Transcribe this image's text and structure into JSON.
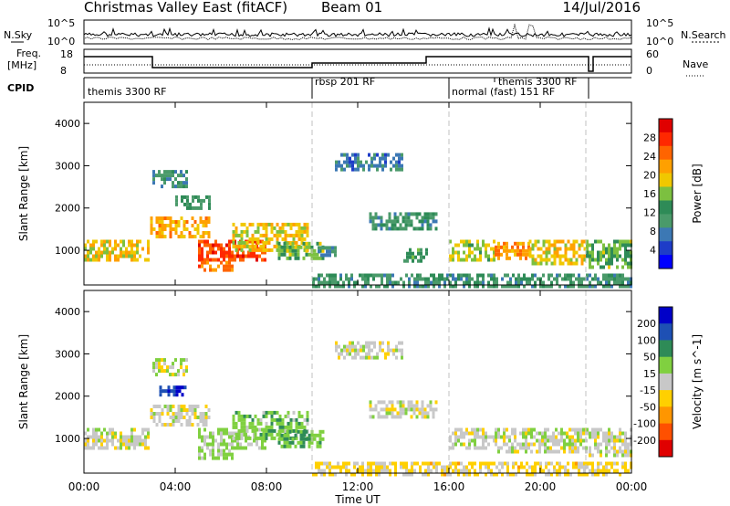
{
  "header": {
    "title": "Christmas Valley East (fitACF)",
    "beam": "Beam 01",
    "date": "14/Jul/2016"
  },
  "nsky_panel": {
    "left_label": "N.Sky",
    "right_label": "N.Search",
    "left_ticks": [
      "10^5",
      "10^0"
    ],
    "right_ticks": [
      "10^5",
      "10^0"
    ]
  },
  "freq_panel": {
    "left_label_1": "Freq.",
    "left_label_2": "[MHz]",
    "left_ticks": [
      "18",
      "8"
    ],
    "right_label": "Nave",
    "right_ticks": [
      "60",
      "0"
    ]
  },
  "cpid": {
    "label": "CPID",
    "segments": [
      {
        "name": "themis 3300 RF",
        "start_h": 0.0
      },
      {
        "name": "rbsp 201 RF",
        "start_h": 10.0
      },
      {
        "name": "normal (fast) 151 RF",
        "start_h": 16.0
      },
      {
        "name": "themis 3300 RF",
        "start_h": 18.0
      }
    ]
  },
  "chart_data": [
    {
      "type": "heatmap",
      "title": "",
      "xlabel": "Time UT",
      "ylabel": "Slant Range [km]",
      "xlim": [
        0,
        24
      ],
      "ylim": [
        180,
        4500
      ],
      "x_ticks": [
        "00:00",
        "04:00",
        "08:00",
        "12:00",
        "16:00",
        "20:00",
        "00:00"
      ],
      "y_ticks": [
        "1000",
        "2000",
        "3000",
        "4000"
      ],
      "colorbar": {
        "label": "Power [dB]",
        "ticks": [
          "4",
          "8",
          "12",
          "16",
          "20",
          "24",
          "28"
        ],
        "range": [
          0,
          30
        ],
        "colors": [
          "#0000ff",
          "#1e3cc8",
          "#3c78b4",
          "#4a9a6a",
          "#2e8b57",
          "#7cc040",
          "#f0c800",
          "#ffa000",
          "#ff6400",
          "#ff2800",
          "#e00000"
        ]
      },
      "regions": [
        {
          "t0": 0.0,
          "t1": 2.8,
          "r0": 750,
          "r1": 1250,
          "val": 18
        },
        {
          "t0": 2.9,
          "t1": 5.5,
          "r0": 1350,
          "r1": 1800,
          "val": 20
        },
        {
          "t0": 3.0,
          "t1": 4.5,
          "r0": 2500,
          "r1": 2900,
          "val": 9
        },
        {
          "t0": 4.0,
          "t1": 5.5,
          "r0": 2000,
          "r1": 2300,
          "val": 11
        },
        {
          "t0": 5.0,
          "t1": 8.0,
          "r0": 750,
          "r1": 1250,
          "val": 25
        },
        {
          "t0": 5.0,
          "t1": 6.5,
          "r0": 500,
          "r1": 750,
          "val": 22
        },
        {
          "t0": 6.5,
          "t1": 9.8,
          "r0": 1000,
          "r1": 1650,
          "val": 18
        },
        {
          "t0": 8.5,
          "t1": 10.5,
          "r0": 800,
          "r1": 1200,
          "val": 14
        },
        {
          "t0": 10.0,
          "t1": 11.0,
          "r0": 900,
          "r1": 1100,
          "val": 8
        },
        {
          "t0": 11.0,
          "t1": 14.0,
          "r0": 2900,
          "r1": 3300,
          "val": 7
        },
        {
          "t0": 12.5,
          "t1": 15.5,
          "r0": 1500,
          "r1": 1900,
          "val": 10
        },
        {
          "t0": 14.0,
          "t1": 15.0,
          "r0": 750,
          "r1": 1050,
          "val": 12
        },
        {
          "t0": 16.0,
          "t1": 18.0,
          "r0": 750,
          "r1": 1250,
          "val": 16
        },
        {
          "t0": 18.0,
          "t1": 19.5,
          "r0": 800,
          "r1": 1200,
          "val": 21
        },
        {
          "t0": 19.5,
          "t1": 22.0,
          "r0": 700,
          "r1": 1250,
          "val": 18
        },
        {
          "t0": 22.0,
          "t1": 24.0,
          "r0": 600,
          "r1": 1250,
          "val": 14
        },
        {
          "t0": 10.0,
          "t1": 24.0,
          "r0": 180,
          "r1": 450,
          "val": 10
        }
      ]
    },
    {
      "type": "heatmap",
      "title": "",
      "xlabel": "Time UT",
      "ylabel": "Slant Range [km]",
      "xlim": [
        0,
        24
      ],
      "ylim": [
        180,
        4500
      ],
      "x_ticks": [
        "00:00",
        "04:00",
        "08:00",
        "12:00",
        "16:00",
        "20:00",
        "00:00"
      ],
      "y_ticks": [
        "1000",
        "2000",
        "3000",
        "4000"
      ],
      "colorbar": {
        "label": "Velocity [m s^-1]",
        "ticks": [
          "200",
          "100",
          "50",
          "15",
          "-15",
          "-50",
          "-100",
          "-200"
        ],
        "range": [
          -250,
          250
        ],
        "colors": [
          "#e00000",
          "#ff5000",
          "#ff9600",
          "#ffd000",
          "#c8c8c8",
          "#80d040",
          "#2e8b57",
          "#1e50b4",
          "#0000c8"
        ]
      },
      "regions": [
        {
          "t0": 0.0,
          "t1": 2.8,
          "r0": 750,
          "r1": 1250,
          "val": 0
        },
        {
          "t0": 2.9,
          "t1": 5.5,
          "r0": 1350,
          "r1": 1800,
          "val": 0
        },
        {
          "t0": 3.0,
          "t1": 4.5,
          "r0": 2500,
          "r1": 2900,
          "val": 0
        },
        {
          "t0": 3.3,
          "t1": 4.5,
          "r0": 2000,
          "r1": 2250,
          "val": 200
        },
        {
          "t0": 5.0,
          "t1": 8.0,
          "r0": 750,
          "r1": 1250,
          "val": 40
        },
        {
          "t0": 5.0,
          "t1": 6.5,
          "r0": 500,
          "r1": 750,
          "val": 40
        },
        {
          "t0": 6.5,
          "t1": 9.8,
          "r0": 1000,
          "r1": 1650,
          "val": 60
        },
        {
          "t0": 8.5,
          "t1": 10.5,
          "r0": 800,
          "r1": 1200,
          "val": 80
        },
        {
          "t0": 11.0,
          "t1": 14.0,
          "r0": 2900,
          "r1": 3300,
          "val": 0
        },
        {
          "t0": 12.5,
          "t1": 15.5,
          "r0": 1500,
          "r1": 1900,
          "val": 0
        },
        {
          "t0": 16.0,
          "t1": 18.0,
          "r0": 750,
          "r1": 1250,
          "val": 0
        },
        {
          "t0": 18.0,
          "t1": 22.0,
          "r0": 700,
          "r1": 1250,
          "val": 0
        },
        {
          "t0": 22.0,
          "t1": 24.0,
          "r0": 600,
          "r1": 1250,
          "val": 0
        },
        {
          "t0": 10.0,
          "t1": 24.0,
          "r0": 180,
          "r1": 450,
          "val": -40
        }
      ]
    }
  ]
}
